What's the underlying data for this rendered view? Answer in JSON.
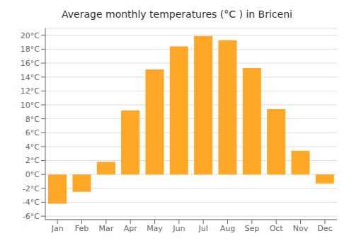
{
  "chart_data": {
    "type": "bar",
    "title": "Average monthly temperatures (°C ) in Briceni",
    "categories": [
      "Jan",
      "Feb",
      "Mar",
      "Apr",
      "May",
      "Jun",
      "Jul",
      "Aug",
      "Sep",
      "Oct",
      "Nov",
      "Dec"
    ],
    "values": [
      -4.2,
      -2.5,
      1.8,
      9.2,
      15.1,
      18.4,
      19.9,
      19.3,
      15.3,
      9.4,
      3.4,
      -1.3
    ],
    "color": "#FFA726",
    "ylim": [
      -6.5,
      21
    ],
    "yticks": [
      {
        "value": -6,
        "label": "-6°C"
      },
      {
        "value": -4,
        "label": "-4°C"
      },
      {
        "value": -2,
        "label": "-2°C"
      },
      {
        "value": 0,
        "label": "0°C"
      },
      {
        "value": 2,
        "label": "2°C"
      },
      {
        "value": 4,
        "label": "4°C"
      },
      {
        "value": 6,
        "label": "6°C"
      },
      {
        "value": 8,
        "label": "8°C"
      },
      {
        "value": 10,
        "label": "10°C"
      },
      {
        "value": 12,
        "label": "12°C"
      },
      {
        "value": 14,
        "label": "14°C"
      },
      {
        "value": 16,
        "label": "16°C"
      },
      {
        "value": 18,
        "label": "18°C"
      },
      {
        "value": 20,
        "label": "20°C"
      }
    ],
    "grid": true
  }
}
